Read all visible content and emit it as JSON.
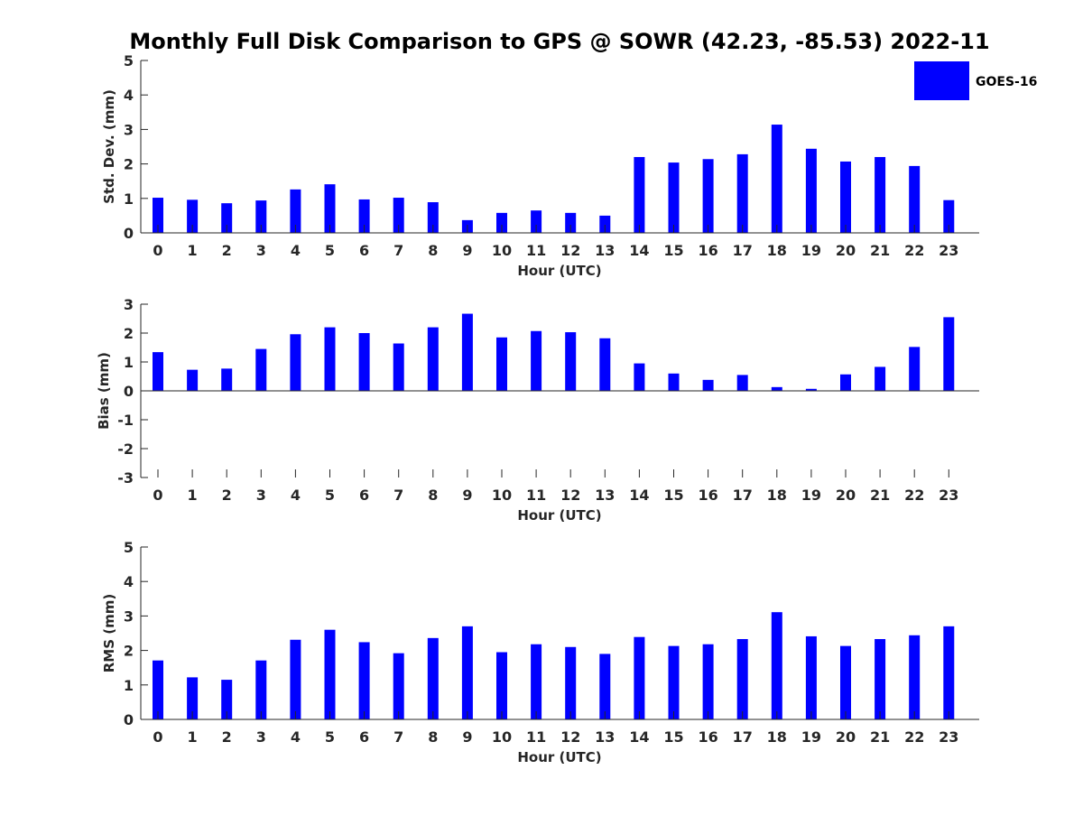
{
  "chart_data": {
    "title": "Monthly Full Disk Comparison to GPS @ SOWR (42.23, -85.53) 2022-11",
    "type": "bar",
    "legend": {
      "placement": "top-right",
      "entries": [
        "GOES-16"
      ]
    },
    "colors": {
      "bar": "#0000ff",
      "axis": "#262626",
      "title": "#000000"
    },
    "x": [
      0,
      1,
      2,
      3,
      4,
      5,
      6,
      7,
      8,
      9,
      10,
      11,
      12,
      13,
      14,
      15,
      16,
      17,
      18,
      19,
      20,
      21,
      22,
      23
    ],
    "xlabel": "Hour (UTC)",
    "grid": false,
    "panels": [
      {
        "ylabel": "Std. Dev. (mm)",
        "ylim": [
          0,
          5
        ],
        "yticks": [
          0,
          1,
          2,
          3,
          4,
          5
        ],
        "series": [
          {
            "name": "GOES-16",
            "values": [
              1.02,
              0.96,
              0.86,
              0.94,
              1.26,
              1.41,
              0.97,
              1.02,
              0.89,
              0.37,
              0.58,
              0.65,
              0.58,
              0.5,
              2.2,
              2.04,
              2.14,
              2.28,
              3.14,
              2.44,
              2.07,
              2.2,
              1.94,
              0.95
            ]
          }
        ]
      },
      {
        "ylabel": "Bias (mm)",
        "ylim": [
          -3,
          3
        ],
        "yticks": [
          -3,
          -2,
          -1,
          0,
          1,
          2,
          3
        ],
        "series": [
          {
            "name": "GOES-16",
            "values": [
              1.34,
              0.73,
              0.77,
              1.45,
              1.96,
              2.2,
              2.0,
              1.64,
              2.2,
              2.67,
              1.85,
              2.07,
              2.03,
              1.82,
              0.95,
              0.6,
              0.38,
              0.55,
              0.13,
              0.07,
              0.57,
              0.83,
              1.52,
              2.55
            ]
          }
        ]
      },
      {
        "ylabel": "RMS (mm)",
        "ylim": [
          0,
          5
        ],
        "yticks": [
          0,
          1,
          2,
          3,
          4,
          5
        ],
        "series": [
          {
            "name": "GOES-16",
            "values": [
              1.71,
              1.22,
              1.15,
              1.71,
              2.31,
              2.6,
              2.24,
              1.92,
              2.36,
              2.7,
              1.95,
              2.18,
              2.1,
              1.9,
              2.39,
              2.13,
              2.18,
              2.33,
              3.11,
              2.41,
              2.13,
              2.33,
              2.44,
              2.7
            ]
          }
        ]
      }
    ]
  }
}
